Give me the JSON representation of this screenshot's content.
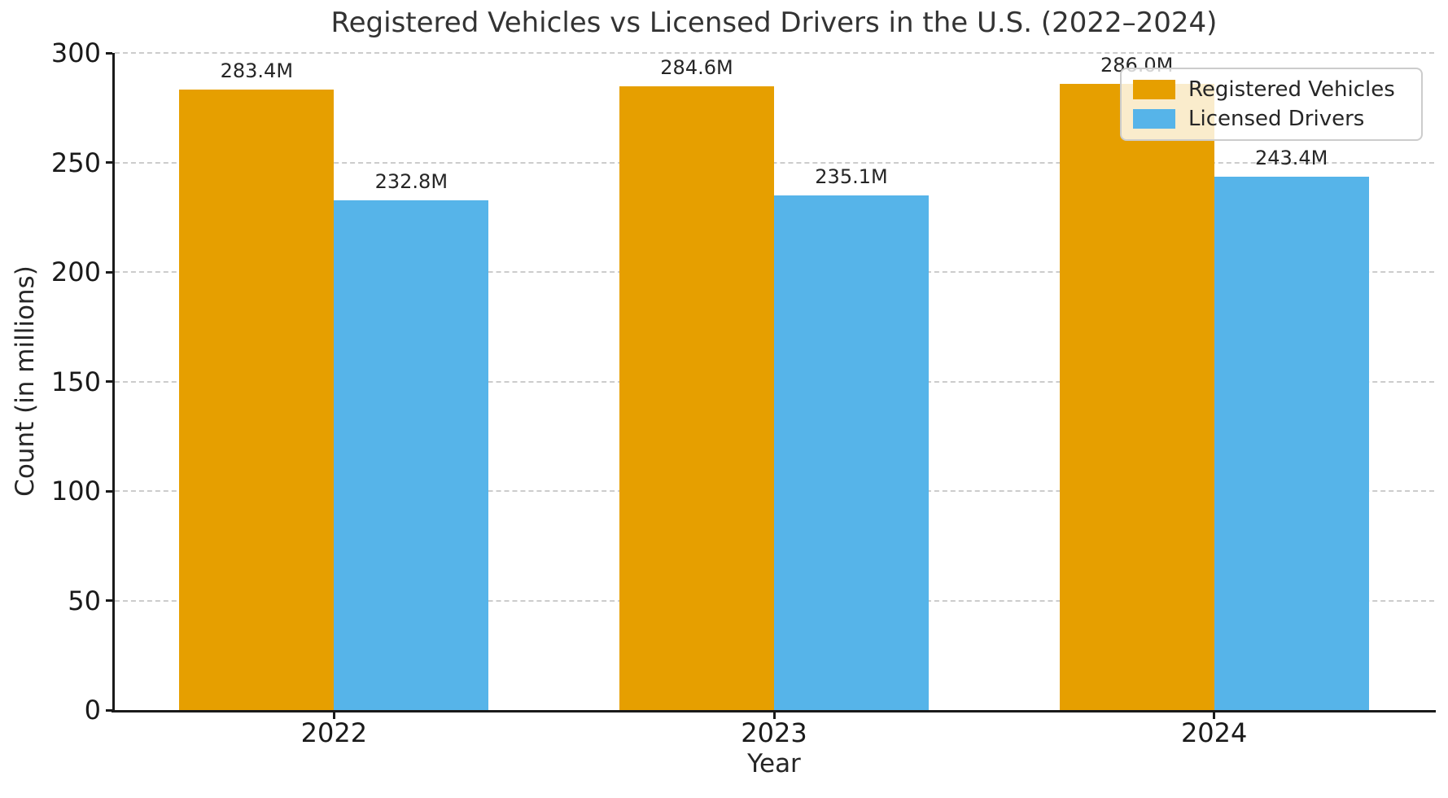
{
  "chart_data": {
    "type": "bar",
    "title": "Registered Vehicles vs Licensed Drivers in the U.S. (2022–2024)",
    "xlabel": "Year",
    "ylabel": "Count (in millions)",
    "categories": [
      "2022",
      "2023",
      "2024"
    ],
    "series": [
      {
        "name": "Registered Vehicles",
        "color": "#E69F00",
        "values": [
          283.4,
          284.6,
          286.0
        ],
        "value_labels": [
          "283.4M",
          "284.6M",
          "286.0M"
        ]
      },
      {
        "name": "Licensed Drivers",
        "color": "#56B4E9",
        "values": [
          232.8,
          235.1,
          243.4
        ],
        "value_labels": [
          "232.8M",
          "235.1M",
          "243.4M"
        ]
      }
    ],
    "ylim": [
      0,
      300
    ],
    "yticks": [
      0,
      50,
      100,
      150,
      200,
      250,
      300
    ],
    "grid": {
      "axis": "y",
      "style": "dashed",
      "color": "#cccccc"
    },
    "legend": {
      "position": "upper-right"
    }
  },
  "style": {
    "background": "#ffffff",
    "spine_color": "#1a1a1a",
    "text_color": "#262626",
    "grid_color": "#cccccc",
    "legend_border": "#cccccc"
  }
}
